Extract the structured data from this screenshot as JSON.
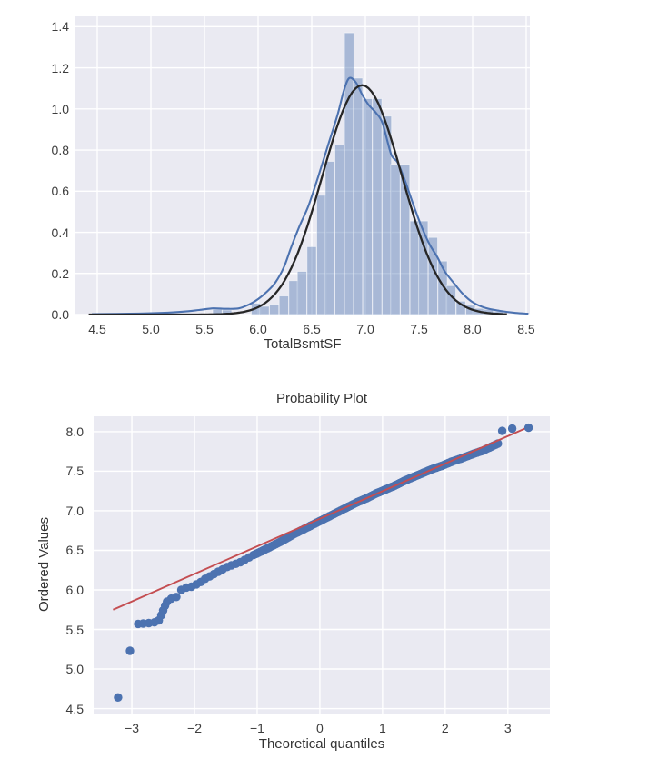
{
  "page": {
    "background": "#ffffff"
  },
  "chart_data": [
    {
      "type": "histogram",
      "name": "distribution-of-TotalBsmtSF",
      "xlabel": "TotalBsmtSF",
      "x_ticks": [
        4.5,
        5.0,
        5.5,
        6.0,
        6.5,
        7.0,
        7.5,
        8.0,
        8.5
      ],
      "x_tick_labels": [
        "4.5",
        "5.0",
        "5.5",
        "6.0",
        "6.5",
        "7.0",
        "7.5",
        "8.0",
        "8.5"
      ],
      "y_ticks": [
        0.0,
        0.2,
        0.4,
        0.6,
        0.8,
        1.0,
        1.2,
        1.4
      ],
      "y_tick_labels": [
        "0.0",
        "0.2",
        "0.4",
        "0.6",
        "0.8",
        "1.0",
        "1.2",
        "1.4"
      ],
      "xlim": [
        4.2966,
        8.5339
      ],
      "ylim": [
        0,
        1.45
      ],
      "grid": true,
      "bin_width": 0.0873,
      "bars": [
        {
          "c": 5.62,
          "h": 0.025
        },
        {
          "c": 5.71,
          "h": 0.022
        },
        {
          "c": 5.98,
          "h": 0.055
        },
        {
          "c": 6.06,
          "h": 0.04
        },
        {
          "c": 6.15,
          "h": 0.05
        },
        {
          "c": 6.24,
          "h": 0.09
        },
        {
          "c": 6.33,
          "h": 0.165
        },
        {
          "c": 6.41,
          "h": 0.21
        },
        {
          "c": 6.5,
          "h": 0.33
        },
        {
          "c": 6.59,
          "h": 0.58
        },
        {
          "c": 6.67,
          "h": 0.745
        },
        {
          "c": 6.76,
          "h": 0.825
        },
        {
          "c": 6.85,
          "h": 1.37
        },
        {
          "c": 6.93,
          "h": 1.15
        },
        {
          "c": 7.02,
          "h": 1.05
        },
        {
          "c": 7.11,
          "h": 1.05
        },
        {
          "c": 7.2,
          "h": 0.965
        },
        {
          "c": 7.28,
          "h": 0.73
        },
        {
          "c": 7.37,
          "h": 0.73
        },
        {
          "c": 7.46,
          "h": 0.455
        },
        {
          "c": 7.54,
          "h": 0.455
        },
        {
          "c": 7.63,
          "h": 0.375
        },
        {
          "c": 7.72,
          "h": 0.26
        },
        {
          "c": 7.8,
          "h": 0.14
        },
        {
          "c": 7.89,
          "h": 0.065
        },
        {
          "c": 7.98,
          "h": 0.045
        },
        {
          "c": 8.06,
          "h": 0.03
        },
        {
          "c": 8.15,
          "h": 0.025
        },
        {
          "c": 8.24,
          "h": 0.015
        }
      ],
      "kde": [
        [
          4.45,
          0.002
        ],
        [
          4.8,
          0.004
        ],
        [
          5.1,
          0.008
        ],
        [
          5.3,
          0.014
        ],
        [
          5.45,
          0.022
        ],
        [
          5.58,
          0.03
        ],
        [
          5.7,
          0.028
        ],
        [
          5.82,
          0.03
        ],
        [
          5.92,
          0.05
        ],
        [
          6.0,
          0.075
        ],
        [
          6.08,
          0.11
        ],
        [
          6.16,
          0.155
        ],
        [
          6.24,
          0.23
        ],
        [
          6.31,
          0.33
        ],
        [
          6.39,
          0.435
        ],
        [
          6.47,
          0.53
        ],
        [
          6.56,
          0.67
        ],
        [
          6.65,
          0.82
        ],
        [
          6.74,
          0.97
        ],
        [
          6.8,
          1.09
        ],
        [
          6.85,
          1.15
        ],
        [
          6.91,
          1.13
        ],
        [
          6.97,
          1.07
        ],
        [
          7.03,
          1.02
        ],
        [
          7.1,
          0.98
        ],
        [
          7.16,
          0.93
        ],
        [
          7.24,
          0.78
        ],
        [
          7.3,
          0.74
        ],
        [
          7.37,
          0.65
        ],
        [
          7.45,
          0.53
        ],
        [
          7.53,
          0.42
        ],
        [
          7.6,
          0.34
        ],
        [
          7.67,
          0.28
        ],
        [
          7.74,
          0.21
        ],
        [
          7.83,
          0.15
        ],
        [
          7.91,
          0.1
        ],
        [
          8.0,
          0.06
        ],
        [
          8.12,
          0.032
        ],
        [
          8.25,
          0.018
        ],
        [
          8.4,
          0.008
        ],
        [
          8.52,
          0.004
        ]
      ],
      "normal_fit": {
        "mean": 6.97,
        "sd": 0.37,
        "peak": 1.115,
        "x_start": 4.42,
        "x_end": 8.34
      },
      "colors": {
        "plot_bg": "#eaeaf2",
        "grid": "#ffffff",
        "bar_fill": "rgba(76,114,176,0.42)",
        "bar_edge": "rgba(255,255,255,0.55)",
        "kde_line": "#4c72b0",
        "normal_line": "#262626",
        "tick_text": "#3c3c3c"
      }
    },
    {
      "type": "scatter",
      "name": "probability-plot",
      "title": "Probability Plot",
      "xlabel": "Theoretical quantiles",
      "ylabel": "Ordered Values",
      "x_ticks": [
        -3,
        -2,
        -1,
        0,
        1,
        2,
        3
      ],
      "x_tick_labels": [
        "−3",
        "−2",
        "−1",
        "0",
        "1",
        "2",
        "3"
      ],
      "y_ticks": [
        4.5,
        5.0,
        5.5,
        6.0,
        6.5,
        7.0,
        7.5,
        8.0
      ],
      "y_tick_labels": [
        "4.5",
        "5.0",
        "5.5",
        "6.0",
        "6.5",
        "7.0",
        "7.5",
        "8.0"
      ],
      "xlim": [
        -3.61,
        3.67
      ],
      "ylim": [
        4.437,
        8.195
      ],
      "grid": true,
      "fit_line": {
        "x1": -3.3,
        "y1": 5.75,
        "x2": 3.33,
        "y2": 8.06
      },
      "points_sparse": [
        [
          -3.22,
          4.64
        ],
        [
          -3.03,
          5.23
        ],
        [
          -2.9,
          5.57
        ],
        [
          -2.82,
          5.575
        ],
        [
          -2.73,
          5.58
        ],
        [
          -2.64,
          5.59
        ],
        [
          -2.57,
          5.615
        ],
        [
          -2.53,
          5.68
        ],
        [
          -2.5,
          5.74
        ],
        [
          -2.47,
          5.8
        ],
        [
          -2.44,
          5.85
        ],
        [
          -2.37,
          5.89
        ],
        [
          -2.29,
          5.91
        ],
        [
          -2.21,
          6.0
        ],
        [
          -2.13,
          6.03
        ],
        [
          -2.05,
          6.04
        ],
        [
          -1.97,
          6.07
        ],
        [
          -1.9,
          6.1
        ],
        [
          -1.83,
          6.14
        ],
        [
          -1.76,
          6.17
        ],
        [
          -1.69,
          6.2
        ],
        [
          -1.62,
          6.23
        ],
        [
          -1.55,
          6.26
        ],
        [
          -1.48,
          6.29
        ],
        [
          -1.41,
          6.31
        ],
        [
          -1.34,
          6.33
        ],
        [
          -1.27,
          6.35
        ],
        [
          -1.2,
          6.38
        ],
        [
          -1.13,
          6.41
        ],
        [
          2.91,
          8.01
        ],
        [
          3.07,
          8.04
        ],
        [
          3.33,
          8.05
        ]
      ],
      "band_anchors": [
        [
          -1.06,
          6.44
        ],
        [
          -0.9,
          6.5
        ],
        [
          -0.75,
          6.56
        ],
        [
          -0.6,
          6.62
        ],
        [
          -0.45,
          6.69
        ],
        [
          -0.3,
          6.75
        ],
        [
          -0.15,
          6.81
        ],
        [
          0.0,
          6.87
        ],
        [
          0.15,
          6.93
        ],
        [
          0.3,
          6.99
        ],
        [
          0.45,
          7.05
        ],
        [
          0.6,
          7.11
        ],
        [
          0.75,
          7.16
        ],
        [
          0.9,
          7.22
        ],
        [
          1.05,
          7.27
        ],
        [
          1.2,
          7.32
        ],
        [
          1.35,
          7.38
        ],
        [
          1.5,
          7.43
        ],
        [
          1.65,
          7.48
        ],
        [
          1.8,
          7.53
        ],
        [
          1.95,
          7.57
        ],
        [
          2.1,
          7.62
        ],
        [
          2.25,
          7.66
        ],
        [
          2.45,
          7.72
        ],
        [
          2.6,
          7.76
        ],
        [
          2.84,
          7.85
        ]
      ],
      "marker_radius": 4.7,
      "band_dot_spacing": 2,
      "colors": {
        "plot_bg": "#eaeaf2",
        "grid": "#ffffff",
        "marker": "#4c72b0",
        "fit_line": "#c44e52",
        "tick_text": "#3c3c3c"
      }
    }
  ]
}
